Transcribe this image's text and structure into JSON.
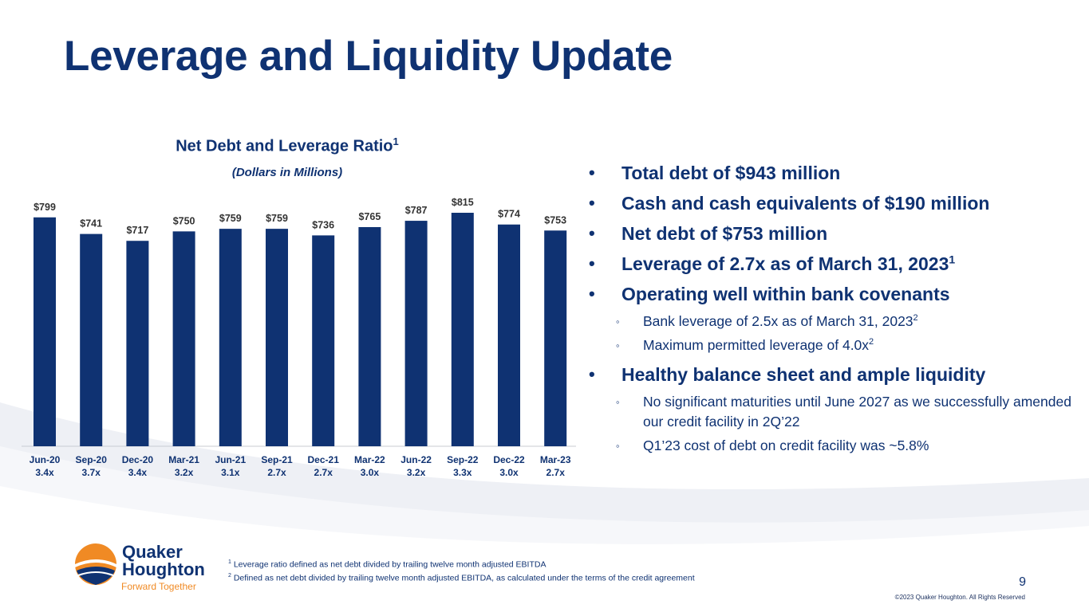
{
  "title": "Leverage and Liquidity Update",
  "chart": {
    "title": "Net Debt and Leverage Ratio",
    "title_sup": "1",
    "subtitle": "(Dollars in Millions)"
  },
  "chart_data": {
    "type": "bar",
    "title": "Net Debt and Leverage Ratio",
    "subtitle": "(Dollars in Millions)",
    "categories": [
      "Jun-20",
      "Sep-20",
      "Dec-20",
      "Mar-21",
      "Jun-21",
      "Sep-21",
      "Dec-21",
      "Mar-22",
      "Jun-22",
      "Sep-22",
      "Dec-22",
      "Mar-23"
    ],
    "leverage_ratios": [
      "3.4x",
      "3.7x",
      "3.4x",
      "3.2x",
      "3.1x",
      "2.7x",
      "2.7x",
      "3.0x",
      "3.2x",
      "3.3x",
      "3.0x",
      "2.7x"
    ],
    "values": [
      799,
      741,
      717,
      750,
      759,
      759,
      736,
      765,
      787,
      815,
      774,
      753
    ],
    "value_labels": [
      "$799",
      "$741",
      "$717",
      "$750",
      "$759",
      "$759",
      "$736",
      "$765",
      "$787",
      "$815",
      "$774",
      "$753"
    ],
    "ylim": [
      0,
      815
    ],
    "grid": false,
    "bar_color": "#0f3272"
  },
  "bullets": [
    {
      "level": 1,
      "text": "Total debt of $943 million"
    },
    {
      "level": 1,
      "text": "Cash and cash equivalents of $190 million"
    },
    {
      "level": 1,
      "text": "Net debt of $753 million"
    },
    {
      "level": 1,
      "text": "Leverage of 2.7x as of March 31, 2023",
      "sup": "1"
    },
    {
      "level": 1,
      "text": "Operating well within bank covenants"
    },
    {
      "level": 2,
      "text": "Bank leverage of 2.5x as of March 31, 2023",
      "sup": "2"
    },
    {
      "level": 2,
      "text": "Maximum permitted leverage of 4.0x",
      "sup": "2"
    },
    {
      "level": 1,
      "text": "Healthy balance sheet and ample liquidity"
    },
    {
      "level": 2,
      "text": "No significant maturities until June 2027 as we successfully amended our credit facility in 2Q’22"
    },
    {
      "level": 2,
      "text": "Q1’23 cost of debt on credit facility was ~5.8%"
    }
  ],
  "bullet_markers": {
    "level1": "•",
    "level2": "◦"
  },
  "footnotes": [
    {
      "num": "1",
      "text": "Leverage ratio defined as net debt divided by trailing twelve month adjusted EBITDA"
    },
    {
      "num": "2",
      "text": "Defined as net debt divided by trailing twelve month adjusted EBITDA, as calculated under the terms of the credit agreement"
    }
  ],
  "logo": {
    "line1": "Quaker",
    "line2": "Houghton",
    "tagline": "Forward Together"
  },
  "page_number": "9",
  "copyright": "©2023 Quaker Houghton. All Rights Reserved",
  "colors": {
    "navy": "#0f3272",
    "orange": "#f08a24",
    "light_wave": "#eef0f5"
  }
}
